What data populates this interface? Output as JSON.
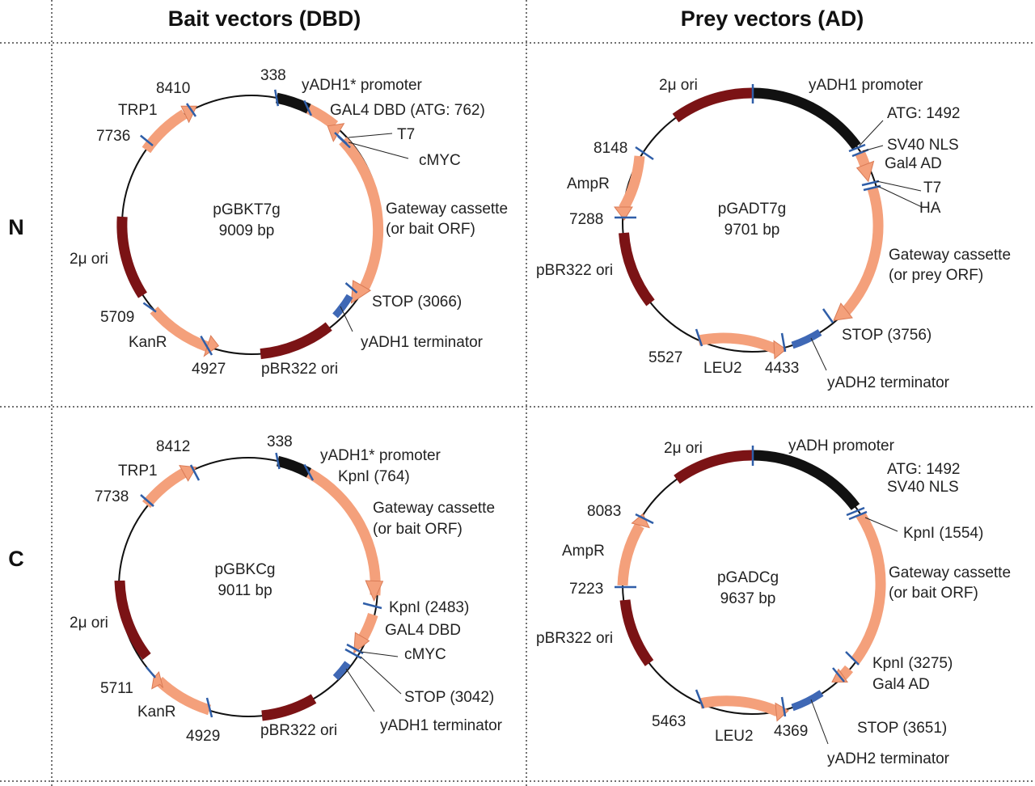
{
  "headers": {
    "bait": "Bait vectors (DBD)",
    "prey": "Prey vectors (AD)",
    "row_n": "N",
    "row_c": "C"
  },
  "colors": {
    "salmon": "#f4a07b",
    "salmon_edge": "#d97a55",
    "maroon": "#7b1315",
    "black": "#111111",
    "site_blue": "#2f5ea8",
    "terminator_blue": "#3f68b5"
  },
  "plasmids": [
    {
      "id": "pGBKT7g",
      "name": "pGBKT7g",
      "size": "9009 bp",
      "labels": [
        "338",
        "yADH1* promoter",
        "GAL4 DBD (ATG: 762)",
        "T7",
        "cMYC",
        "Gateway cassette",
        "(or bait  ORF)",
        "STOP (3066)",
        "yADH1 terminator",
        "pBR322 ori",
        "4927",
        "KanR",
        "5709",
        "2μ ori",
        "7736",
        "TRP1",
        "8410"
      ]
    },
    {
      "id": "pGADT7g",
      "name": "pGADT7g",
      "size": "9701 bp",
      "labels": [
        "2μ ori",
        "yADH1 promoter",
        "ATG: 1492",
        "SV40 NLS",
        "Gal4 AD",
        "T7",
        "HA",
        "Gateway cassette",
        "(or prey ORF)",
        "STOP (3756)",
        "yADH2 terminator",
        "4433",
        "LEU2",
        "5527",
        "pBR322 ori",
        "7288",
        "AmpR",
        "8148"
      ]
    },
    {
      "id": "pGBKCg",
      "name": "pGBKCg",
      "size": "9011 bp",
      "labels": [
        "338",
        "yADH1* promoter",
        "KpnI (764)",
        "Gateway cassette",
        "(or bait  ORF)",
        "KpnI (2483)",
        "GAL4 DBD",
        "cMYC",
        "STOP (3042)",
        "yADH1 terminator",
        "pBR322 ori",
        "4929",
        "KanR",
        "5711",
        "2μ ori",
        "7738",
        "TRP1",
        "8412"
      ]
    },
    {
      "id": "pGADCg",
      "name": "pGADCg",
      "size": "9637 bp",
      "labels": [
        "2μ ori",
        "yADH promoter",
        "ATG: 1492",
        "SV40 NLS",
        "KpnI (1554)",
        "Gateway cassette",
        "(or bait  ORF)",
        "KpnI (3275)",
        "Gal4 AD",
        "STOP (3651)",
        "yADH2 terminator",
        "4369",
        "LEU2",
        "5463",
        "pBR322 ori",
        "7223",
        "AmpR",
        "8083"
      ]
    }
  ]
}
